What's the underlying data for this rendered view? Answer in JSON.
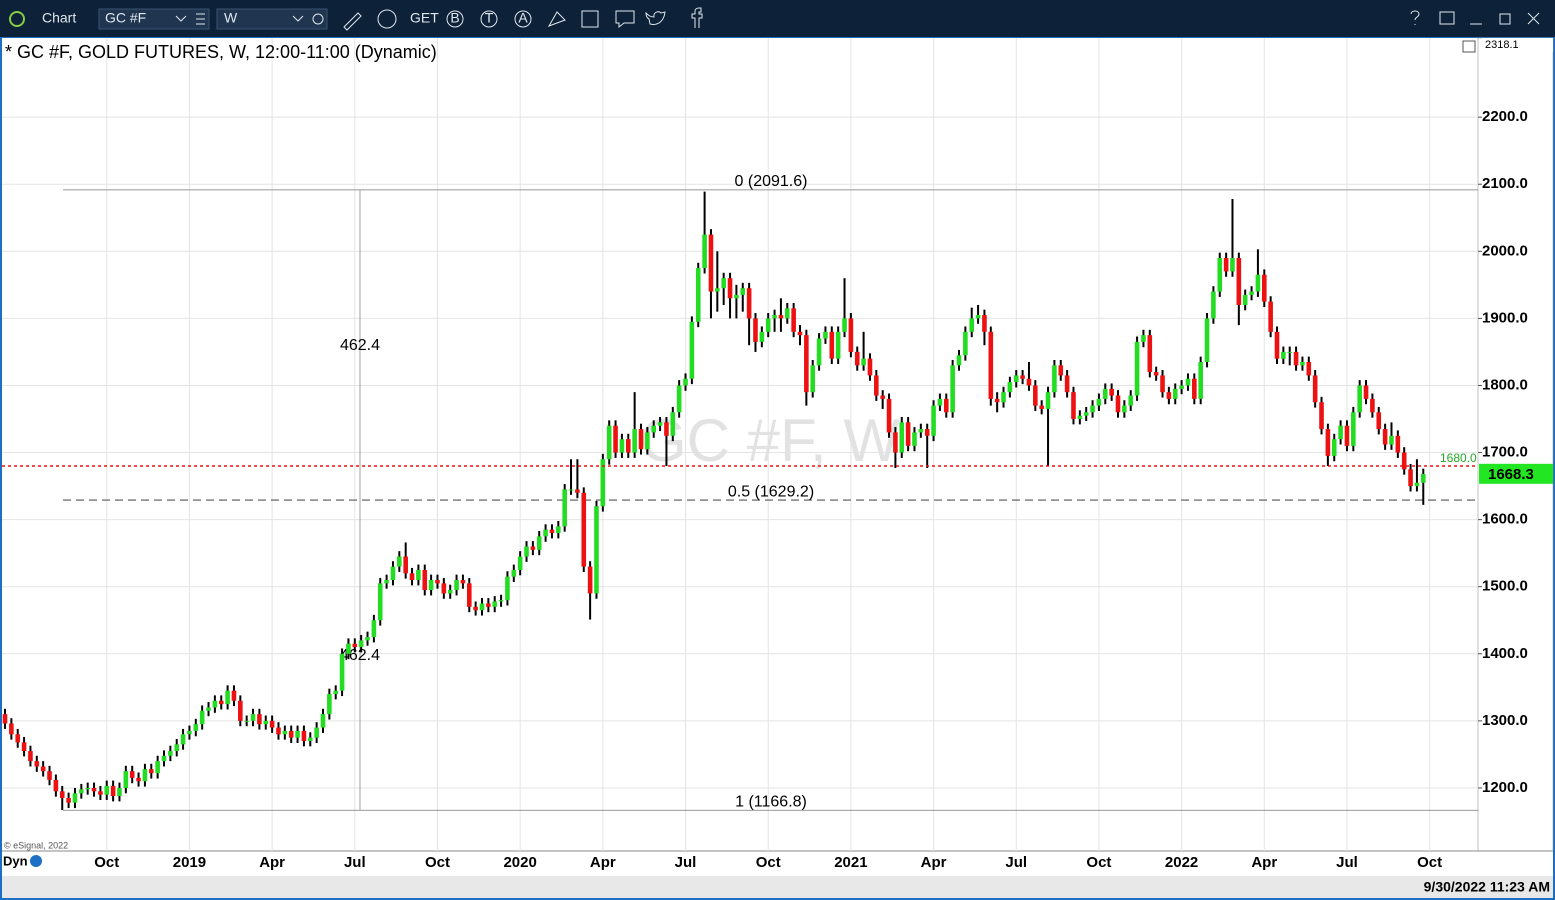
{
  "toolbar": {
    "app": "Chart",
    "symbol": "GC #F",
    "interval": "W",
    "get": "GET",
    "icons": [
      "B",
      "T",
      "A"
    ]
  },
  "footer": {
    "dyn": "Dyn",
    "copyright": "© eSignal, 2022",
    "timestamp": "9/30/2022 11:23 AM"
  },
  "chart_data": {
    "type": "candlestick",
    "title": "* GC #F, GOLD FUTURES, W, 12:00-11:00 (Dynamic)",
    "watermark": "GC #F, W",
    "axis_top_label": "2318.1",
    "up_color": "#22dd22",
    "down_color": "#ee1111",
    "wick_color": "#000000",
    "grid": true,
    "ylim": [
      1106,
      2318
    ],
    "yticks": [
      {
        "value": 1200,
        "label": "1200.0"
      },
      {
        "value": 1300,
        "label": "1300.0"
      },
      {
        "value": 1400,
        "label": "1400.0"
      },
      {
        "value": 1500,
        "label": "1500.0"
      },
      {
        "value": 1600,
        "label": "1600.0"
      },
      {
        "value": 1700,
        "label": "1700.0"
      },
      {
        "value": 1800,
        "label": "1800.0"
      },
      {
        "value": 1900,
        "label": "1900.0"
      },
      {
        "value": 2000,
        "label": "2000.0"
      },
      {
        "value": 2100,
        "label": "2100.0"
      },
      {
        "value": 2200,
        "label": "2200.0"
      }
    ],
    "categories": [
      null,
      null,
      null,
      null,
      null,
      null,
      null,
      null,
      null,
      null,
      null,
      null,
      null,
      null,
      null,
      null,
      "Oct",
      null,
      null,
      null,
      null,
      null,
      null,
      null,
      null,
      null,
      null,
      null,
      null,
      "2019",
      null,
      null,
      null,
      null,
      null,
      null,
      null,
      null,
      null,
      null,
      null,
      null,
      "Apr",
      null,
      null,
      null,
      null,
      null,
      null,
      null,
      null,
      null,
      null,
      null,
      null,
      "Jul",
      null,
      null,
      null,
      null,
      null,
      null,
      null,
      null,
      null,
      null,
      null,
      null,
      "Oct",
      null,
      null,
      null,
      null,
      null,
      null,
      null,
      null,
      null,
      null,
      null,
      null,
      "2020",
      null,
      null,
      null,
      null,
      null,
      null,
      null,
      null,
      null,
      null,
      null,
      null,
      "Apr",
      null,
      null,
      null,
      null,
      null,
      null,
      null,
      null,
      null,
      null,
      null,
      null,
      "Jul",
      null,
      null,
      null,
      null,
      null,
      null,
      null,
      null,
      null,
      null,
      null,
      null,
      "Oct",
      null,
      null,
      null,
      null,
      null,
      null,
      null,
      null,
      null,
      null,
      null,
      null,
      "2021",
      null,
      null,
      null,
      null,
      null,
      null,
      null,
      null,
      null,
      null,
      null,
      null,
      "Apr",
      null,
      null,
      null,
      null,
      null,
      null,
      null,
      null,
      null,
      null,
      null,
      null,
      "Jul",
      null,
      null,
      null,
      null,
      null,
      null,
      null,
      null,
      null,
      null,
      null,
      null,
      "Oct",
      null,
      null,
      null,
      null,
      null,
      null,
      null,
      null,
      null,
      null,
      null,
      null,
      "2022",
      null,
      null,
      null,
      null,
      null,
      null,
      null,
      null,
      null,
      null,
      null,
      null,
      "Apr",
      null,
      null,
      null,
      null,
      null,
      null,
      null,
      null,
      null,
      null,
      null,
      null,
      "Jul",
      null,
      null,
      null,
      null,
      null,
      null,
      null,
      null,
      null,
      null,
      null,
      null,
      "Oct"
    ],
    "open": [
      1310,
      1296,
      1280,
      1268,
      1255,
      1240,
      1232,
      1225,
      1212,
      1195,
      1185,
      1178,
      1192,
      1198,
      1200,
      1195,
      1190,
      1203,
      1188,
      1200,
      1225,
      1215,
      1210,
      1228,
      1222,
      1240,
      1248,
      1255,
      1265,
      1280,
      1285,
      1295,
      1315,
      1320,
      1330,
      1325,
      1345,
      1330,
      1300,
      1300,
      1310,
      1295,
      1300,
      1290,
      1280,
      1285,
      1275,
      1285,
      1270,
      1275,
      1290,
      1310,
      1340,
      1345,
      1400,
      1415,
      1410,
      1420,
      1425,
      1450,
      1505,
      1510,
      1530,
      1545,
      1520,
      1510,
      1525,
      1495,
      1510,
      1505,
      1490,
      1495,
      1510,
      1505,
      1470,
      1465,
      1475,
      1470,
      1478,
      1480,
      1515,
      1525,
      1545,
      1560,
      1555,
      1575,
      1585,
      1580,
      1590,
      1645,
      1645,
      1640,
      1530,
      1490,
      1620,
      1690,
      1740,
      1700,
      1720,
      1700,
      1735,
      1705,
      1730,
      1740,
      1745,
      1725,
      1760,
      1800,
      1810,
      1895,
      1975,
      2025,
      1940,
      1945,
      1960,
      1930,
      1935,
      1945,
      1900,
      1865,
      1880,
      1900,
      1905,
      1900,
      1915,
      1880,
      1875,
      1790,
      1830,
      1870,
      1880,
      1840,
      1880,
      1900,
      1850,
      1830,
      1840,
      1815,
      1785,
      1780,
      1730,
      1700,
      1745,
      1710,
      1730,
      1735,
      1725,
      1770,
      1780,
      1760,
      1830,
      1845,
      1880,
      1900,
      1905,
      1880,
      1780,
      1775,
      1790,
      1805,
      1815,
      1810,
      1800,
      1770,
      1765,
      1790,
      1830,
      1815,
      1790,
      1750,
      1755,
      1760,
      1770,
      1780,
      1795,
      1785,
      1760,
      1770,
      1785,
      1865,
      1875,
      1820,
      1815,
      1790,
      1780,
      1795,
      1800,
      1810,
      1780,
      1835,
      1900,
      1940,
      1990,
      1970,
      1990,
      1920,
      1935,
      1940,
      1965,
      1925,
      1880,
      1840,
      1850,
      1850,
      1830,
      1835,
      1815,
      1775,
      1735,
      1695,
      1720,
      1740,
      1710,
      1760,
      1800,
      1780,
      1760,
      1735,
      1712,
      1725,
      1700,
      1675,
      1650,
      1655,
      null
    ],
    "high": [
      1318,
      1304,
      1288,
      1276,
      1263,
      1248,
      1240,
      1233,
      1220,
      1203,
      1193,
      1200,
      1206,
      1208,
      1208,
      1203,
      1211,
      1211,
      1208,
      1233,
      1233,
      1223,
      1236,
      1236,
      1248,
      1256,
      1263,
      1273,
      1288,
      1293,
      1303,
      1323,
      1328,
      1338,
      1338,
      1353,
      1353,
      1338,
      1308,
      1318,
      1318,
      1308,
      1308,
      1298,
      1293,
      1293,
      1293,
      1293,
      1283,
      1298,
      1318,
      1348,
      1353,
      1408,
      1423,
      1423,
      1428,
      1433,
      1458,
      1513,
      1518,
      1538,
      1553,
      1566,
      1528,
      1533,
      1533,
      1518,
      1518,
      1513,
      1503,
      1518,
      1518,
      1513,
      1478,
      1483,
      1483,
      1486,
      1488,
      1523,
      1533,
      1553,
      1568,
      1568,
      1583,
      1593,
      1593,
      1598,
      1653,
      1690,
      1690,
      1648,
      1538,
      1628,
      1698,
      1748,
      1748,
      1728,
      1728,
      1790,
      1743,
      1738,
      1748,
      1753,
      1753,
      1768,
      1808,
      1818,
      1903,
      1983,
      2089,
      2033,
      2000,
      1968,
      1968,
      1950,
      1953,
      1953,
      1908,
      1888,
      1908,
      1913,
      1930,
      1923,
      1923,
      1890,
      1883,
      1838,
      1878,
      1888,
      1888,
      1888,
      1960,
      1908,
      1858,
      1880,
      1848,
      1823,
      1793,
      1788,
      1738,
      1753,
      1753,
      1738,
      1743,
      1743,
      1778,
      1788,
      1788,
      1838,
      1853,
      1888,
      1916,
      1920,
      1913,
      1888,
      1790,
      1798,
      1813,
      1823,
      1823,
      1835,
      1808,
      1778,
      1798,
      1838,
      1838,
      1823,
      1798,
      1763,
      1768,
      1778,
      1788,
      1803,
      1803,
      1793,
      1778,
      1793,
      1873,
      1883,
      1883,
      1828,
      1823,
      1798,
      1803,
      1808,
      1818,
      1818,
      1843,
      1908,
      1948,
      1998,
      1998,
      2078,
      1998,
      1943,
      1948,
      2003,
      1973,
      1933,
      1888,
      1858,
      1858,
      1858,
      1843,
      1843,
      1823,
      1783,
      1743,
      1728,
      1748,
      1748,
      1768,
      1808,
      1808,
      1788,
      1768,
      1743,
      1745,
      1733,
      1708,
      1683,
      1690,
      1676,
      null
    ],
    "low": [
      1288,
      1272,
      1260,
      1247,
      1232,
      1224,
      1217,
      1204,
      1187,
      1167,
      1170,
      1170,
      1184,
      1190,
      1187,
      1182,
      1182,
      1180,
      1180,
      1192,
      1207,
      1202,
      1202,
      1214,
      1214,
      1232,
      1240,
      1247,
      1257,
      1272,
      1277,
      1287,
      1307,
      1312,
      1317,
      1317,
      1322,
      1292,
      1292,
      1292,
      1287,
      1287,
      1282,
      1272,
      1272,
      1267,
      1267,
      1262,
      1262,
      1267,
      1282,
      1302,
      1332,
      1337,
      1392,
      1402,
      1402,
      1412,
      1417,
      1442,
      1497,
      1502,
      1522,
      1512,
      1502,
      1502,
      1487,
      1487,
      1497,
      1482,
      1482,
      1487,
      1497,
      1462,
      1457,
      1457,
      1462,
      1462,
      1470,
      1472,
      1507,
      1517,
      1537,
      1547,
      1547,
      1567,
      1572,
      1572,
      1582,
      1637,
      1632,
      1522,
      1451,
      1482,
      1612,
      1682,
      1692,
      1692,
      1692,
      1692,
      1697,
      1697,
      1722,
      1732,
      1680,
      1717,
      1752,
      1792,
      1802,
      1887,
      1967,
      1900,
      1910,
      1920,
      1900,
      1900,
      1910,
      1860,
      1850,
      1857,
      1872,
      1880,
      1880,
      1892,
      1872,
      1860,
      1770,
      1782,
      1822,
      1862,
      1832,
      1832,
      1872,
      1842,
      1822,
      1822,
      1807,
      1777,
      1765,
      1722,
      1677,
      1692,
      1702,
      1702,
      1722,
      1677,
      1717,
      1762,
      1752,
      1752,
      1822,
      1837,
      1872,
      1892,
      1860,
      1770,
      1760,
      1767,
      1782,
      1797,
      1802,
      1792,
      1762,
      1757,
      1680,
      1782,
      1807,
      1782,
      1742,
      1742,
      1747,
      1752,
      1762,
      1772,
      1777,
      1752,
      1752,
      1762,
      1777,
      1857,
      1812,
      1807,
      1782,
      1772,
      1772,
      1787,
      1792,
      1772,
      1772,
      1827,
      1892,
      1932,
      1962,
      1962,
      1890,
      1912,
      1927,
      1932,
      1917,
      1872,
      1832,
      1832,
      1830,
      1822,
      1822,
      1807,
      1767,
      1727,
      1680,
      1687,
      1712,
      1702,
      1702,
      1752,
      1772,
      1752,
      1727,
      1704,
      1704,
      1692,
      1667,
      1642,
      1642,
      1622,
      null
    ],
    "close": [
      1296,
      1280,
      1268,
      1255,
      1240,
      1232,
      1225,
      1212,
      1195,
      1185,
      1178,
      1192,
      1198,
      1200,
      1195,
      1190,
      1203,
      1188,
      1200,
      1225,
      1215,
      1210,
      1228,
      1222,
      1240,
      1248,
      1255,
      1265,
      1280,
      1285,
      1295,
      1315,
      1320,
      1330,
      1325,
      1345,
      1330,
      1300,
      1300,
      1310,
      1295,
      1300,
      1290,
      1280,
      1285,
      1275,
      1285,
      1270,
      1275,
      1290,
      1310,
      1340,
      1345,
      1400,
      1415,
      1410,
      1420,
      1425,
      1450,
      1505,
      1510,
      1530,
      1545,
      1520,
      1510,
      1525,
      1495,
      1510,
      1505,
      1490,
      1495,
      1510,
      1505,
      1470,
      1465,
      1475,
      1470,
      1478,
      1480,
      1515,
      1525,
      1545,
      1560,
      1555,
      1575,
      1585,
      1580,
      1590,
      1645,
      1645,
      1640,
      1530,
      1490,
      1620,
      1690,
      1740,
      1700,
      1720,
      1700,
      1735,
      1705,
      1730,
      1740,
      1745,
      1725,
      1760,
      1800,
      1810,
      1895,
      1975,
      2025,
      1940,
      1945,
      1960,
      1930,
      1935,
      1945,
      1900,
      1865,
      1880,
      1900,
      1905,
      1900,
      1915,
      1880,
      1875,
      1790,
      1830,
      1870,
      1880,
      1840,
      1880,
      1900,
      1850,
      1830,
      1840,
      1815,
      1785,
      1780,
      1730,
      1700,
      1745,
      1710,
      1730,
      1735,
      1725,
      1770,
      1780,
      1760,
      1830,
      1845,
      1880,
      1900,
      1905,
      1880,
      1780,
      1775,
      1790,
      1805,
      1815,
      1810,
      1800,
      1770,
      1765,
      1790,
      1830,
      1815,
      1790,
      1750,
      1755,
      1760,
      1770,
      1780,
      1795,
      1785,
      1760,
      1770,
      1785,
      1865,
      1875,
      1820,
      1815,
      1790,
      1780,
      1795,
      1800,
      1810,
      1780,
      1835,
      1900,
      1940,
      1990,
      1970,
      1990,
      1920,
      1935,
      1940,
      1965,
      1925,
      1880,
      1840,
      1850,
      1850,
      1830,
      1835,
      1815,
      1775,
      1735,
      1695,
      1720,
      1740,
      1710,
      1760,
      1800,
      1780,
      1760,
      1735,
      1712,
      1725,
      1700,
      1675,
      1650,
      1655,
      1668,
      null
    ],
    "fib_levels": [
      {
        "value": 2091.6,
        "label": "0 (2091.6)"
      },
      {
        "value": 1629.2,
        "label": "0.5 (1629.2)"
      },
      {
        "value": 1166.8,
        "label": "1 (1166.8)"
      }
    ],
    "measure": 462.4,
    "level": {
      "value": 1680,
      "label": "1680.0",
      "color": "#ee1111",
      "label_color": "#22aa22"
    },
    "last": {
      "value": 1668.3,
      "label": "1668.3",
      "color": "#22e622"
    }
  }
}
